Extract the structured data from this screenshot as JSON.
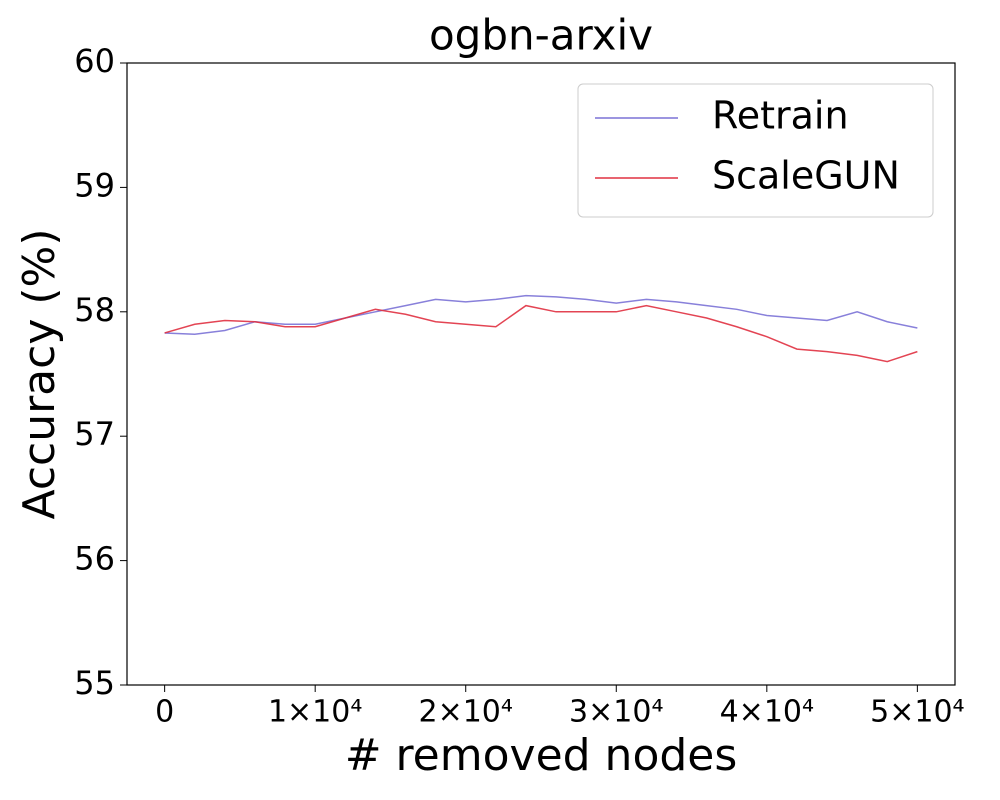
{
  "chart_data": {
    "type": "line",
    "title": "ogbn-arxiv",
    "x_label": "# removed nodes",
    "y_label": "Accuracy (%)",
    "x": [
      0,
      2000,
      4000,
      6000,
      8000,
      10000,
      12000,
      14000,
      16000,
      18000,
      20000,
      22000,
      24000,
      26000,
      28000,
      30000,
      32000,
      34000,
      36000,
      38000,
      40000,
      42000,
      44000,
      46000,
      48000,
      50000
    ],
    "series": [
      {
        "name": "Retrain",
        "color": "#7b72d6",
        "values": [
          57.83,
          57.82,
          57.85,
          57.92,
          57.9,
          57.9,
          57.95,
          58.0,
          58.05,
          58.1,
          58.08,
          58.1,
          58.13,
          58.12,
          58.1,
          58.07,
          58.1,
          58.08,
          58.05,
          58.02,
          57.97,
          57.95,
          57.93,
          58.0,
          57.92,
          57.87
        ]
      },
      {
        "name": "ScaleGUN",
        "color": "#e03040",
        "values": [
          57.83,
          57.9,
          57.93,
          57.92,
          57.88,
          57.88,
          57.95,
          58.02,
          57.98,
          57.92,
          57.9,
          57.88,
          58.05,
          58.0,
          58.0,
          58.0,
          58.05,
          58.0,
          57.95,
          57.88,
          57.8,
          57.7,
          57.68,
          57.65,
          57.6,
          57.68
        ]
      }
    ],
    "xlim": [
      -2500,
      52500
    ],
    "xticks": [
      0,
      {
        "value": 10000,
        "label": "1×10⁴"
      },
      {
        "value": 20000,
        "label": "2×10⁴"
      },
      {
        "value": 30000,
        "label": "3×10⁴"
      },
      {
        "value": 40000,
        "label": "4×10⁴"
      },
      {
        "value": 50000,
        "label": "5×10⁴"
      }
    ],
    "ylim": [
      55,
      60
    ],
    "yticks": [
      55,
      56,
      57,
      58,
      59,
      60
    ],
    "grid": false,
    "legend": "upper right"
  }
}
